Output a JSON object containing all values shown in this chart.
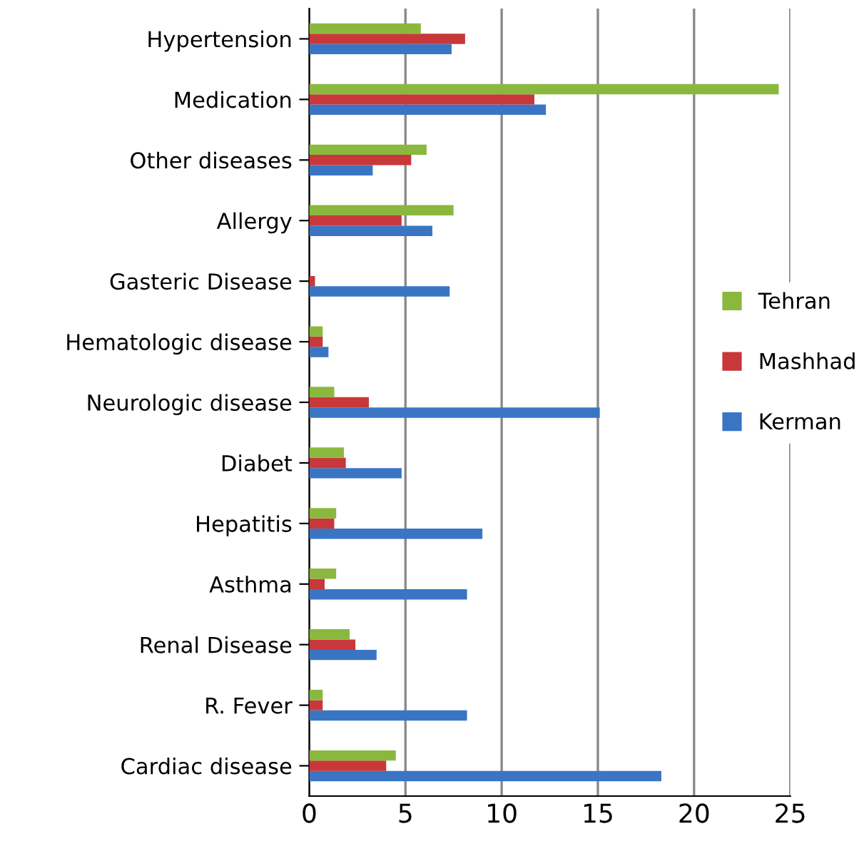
{
  "chart_data": {
    "type": "bar",
    "orientation": "horizontal",
    "categories": [
      "Hypertension",
      "Medication",
      "Other diseases",
      "Allergy",
      "Gasteric Disease",
      "Hematologic disease",
      "Neurologic disease",
      "Diabet",
      "Hepatitis",
      "Asthma",
      "Renal Disease",
      "R. Fever",
      "Cardiac disease"
    ],
    "series": [
      {
        "name": "Kerman",
        "color": "#3a75c4",
        "values": [
          7.4,
          12.3,
          3.3,
          6.4,
          7.3,
          1.0,
          15.1,
          4.8,
          9.0,
          8.2,
          3.5,
          8.2,
          18.3
        ]
      },
      {
        "name": "Mashhad",
        "color": "#c8383a",
        "values": [
          8.1,
          11.7,
          5.3,
          4.8,
          0.3,
          0.7,
          3.1,
          1.9,
          1.3,
          0.8,
          2.4,
          0.7,
          4.0
        ]
      },
      {
        "name": "Tehran",
        "color": "#8ab83e",
        "values": [
          5.8,
          24.4,
          6.1,
          7.5,
          0.0,
          0.7,
          1.3,
          1.8,
          1.4,
          1.4,
          2.1,
          0.7,
          4.5
        ]
      }
    ],
    "xlim": [
      0,
      25
    ],
    "xticks": [
      0,
      5,
      10,
      15,
      20,
      25
    ],
    "grid": "x",
    "legend": "right"
  }
}
